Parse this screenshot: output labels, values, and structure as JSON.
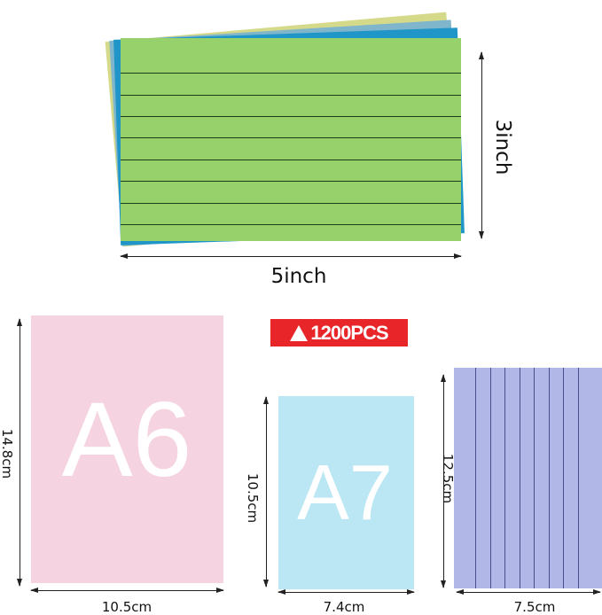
{
  "top_card": {
    "colors": {
      "front": "#96d16b",
      "back_blue": "#1f95c8",
      "back_lightblue": "#7fb6cc",
      "back_yellow": "#d5d98a"
    },
    "width_label": "5inch",
    "height_label": "3inch"
  },
  "badge": {
    "icon": "triangle-up-icon",
    "label": "1200PCS",
    "color": "#e8262a"
  },
  "cards": [
    {
      "letter": "A6",
      "color": "#f5d3e1",
      "width_label": "10.5cm",
      "height_label": "14.8cm"
    },
    {
      "letter": "A7",
      "color": "#bae7f3",
      "width_label": "7.4cm",
      "height_label": "10.5cm"
    },
    {
      "color": "#b1b7e6",
      "width_label": "7.5cm",
      "height_label": "12.5cm"
    }
  ]
}
